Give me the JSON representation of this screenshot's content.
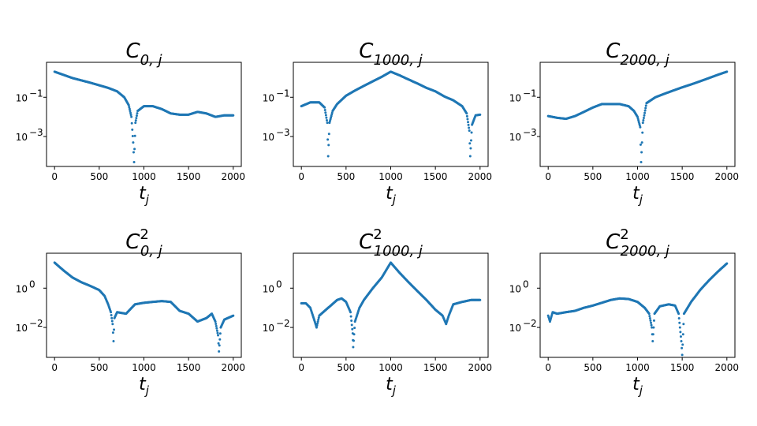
{
  "chart_data": [
    {
      "type": "scatter",
      "title": {
        "base": "C",
        "sub": "0, j",
        "sup": ""
      },
      "xlabel": {
        "base": "t",
        "sub": "j"
      },
      "ylog": true,
      "xlim": [
        -90,
        2090
      ],
      "ylim": [
        3e-05,
        6
      ],
      "xticks": [
        0,
        500,
        1000,
        1500,
        2000
      ],
      "yticks": [
        {
          "value": 0.1,
          "base": "10",
          "exp": "−1"
        },
        {
          "value": 0.001,
          "base": "10",
          "exp": "−3"
        }
      ],
      "series": [
        {
          "color": "#1f77b4",
          "points": [
            [
              0,
              2.0
            ],
            [
              200,
              0.95
            ],
            [
              400,
              0.55
            ],
            [
              600,
              0.3
            ],
            [
              700,
              0.2
            ],
            [
              780,
              0.1
            ],
            [
              830,
              0.04
            ],
            [
              860,
              0.01
            ],
            [
              880,
              0.0005
            ],
            [
              890,
              5e-05
            ],
            [
              905,
              0.005
            ],
            [
              930,
              0.02
            ],
            [
              1000,
              0.035
            ],
            [
              1100,
              0.035
            ],
            [
              1200,
              0.025
            ],
            [
              1300,
              0.015
            ],
            [
              1400,
              0.013
            ],
            [
              1500,
              0.013
            ],
            [
              1600,
              0.018
            ],
            [
              1700,
              0.015
            ],
            [
              1800,
              0.01
            ],
            [
              1900,
              0.012
            ],
            [
              2000,
              0.012
            ]
          ]
        }
      ]
    },
    {
      "type": "scatter",
      "title": {
        "base": "C",
        "sub": "1000, j",
        "sup": ""
      },
      "xlabel": {
        "base": "t",
        "sub": "j"
      },
      "ylog": true,
      "xlim": [
        -90,
        2090
      ],
      "ylim": [
        3e-05,
        6
      ],
      "xticks": [
        0,
        500,
        1000,
        1500,
        2000
      ],
      "yticks": [
        {
          "value": 0.1,
          "base": "10",
          "exp": "−1"
        },
        {
          "value": 0.001,
          "base": "10",
          "exp": "−3"
        }
      ],
      "series": [
        {
          "color": "#1f77b4",
          "points": [
            [
              0,
              0.035
            ],
            [
              100,
              0.055
            ],
            [
              200,
              0.055
            ],
            [
              260,
              0.03
            ],
            [
              290,
              0.005
            ],
            [
              300,
              0.0001
            ],
            [
              315,
              0.005
            ],
            [
              350,
              0.02
            ],
            [
              400,
              0.045
            ],
            [
              500,
              0.12
            ],
            [
              600,
              0.22
            ],
            [
              700,
              0.38
            ],
            [
              800,
              0.65
            ],
            [
              900,
              1.1
            ],
            [
              1000,
              2.0
            ],
            [
              1100,
              1.3
            ],
            [
              1200,
              0.8
            ],
            [
              1300,
              0.5
            ],
            [
              1400,
              0.3
            ],
            [
              1500,
              0.2
            ],
            [
              1600,
              0.11
            ],
            [
              1700,
              0.07
            ],
            [
              1800,
              0.035
            ],
            [
              1850,
              0.015
            ],
            [
              1880,
              0.002
            ],
            [
              1890,
              0.0001
            ],
            [
              1910,
              0.004
            ],
            [
              1950,
              0.012
            ],
            [
              2000,
              0.013
            ]
          ]
        }
      ]
    },
    {
      "type": "scatter",
      "title": {
        "base": "C",
        "sub": "2000, j",
        "sup": ""
      },
      "xlabel": {
        "base": "t",
        "sub": "j"
      },
      "ylog": true,
      "xlim": [
        -90,
        2090
      ],
      "ylim": [
        3e-05,
        6
      ],
      "xticks": [
        0,
        500,
        1000,
        1500,
        2000
      ],
      "yticks": [
        {
          "value": 0.1,
          "base": "10",
          "exp": "−1"
        },
        {
          "value": 0.001,
          "base": "10",
          "exp": "−3"
        }
      ],
      "series": [
        {
          "color": "#1f77b4",
          "points": [
            [
              0,
              0.011
            ],
            [
              100,
              0.009
            ],
            [
              200,
              0.008
            ],
            [
              300,
              0.011
            ],
            [
              400,
              0.018
            ],
            [
              500,
              0.03
            ],
            [
              600,
              0.045
            ],
            [
              700,
              0.045
            ],
            [
              800,
              0.045
            ],
            [
              900,
              0.035
            ],
            [
              960,
              0.02
            ],
            [
              1000,
              0.01
            ],
            [
              1030,
              0.003
            ],
            [
              1040,
              5e-05
            ],
            [
              1060,
              0.005
            ],
            [
              1100,
              0.05
            ],
            [
              1200,
              0.1
            ],
            [
              1300,
              0.15
            ],
            [
              1400,
              0.22
            ],
            [
              1500,
              0.32
            ],
            [
              1600,
              0.45
            ],
            [
              1700,
              0.65
            ],
            [
              1800,
              0.95
            ],
            [
              1900,
              1.4
            ],
            [
              2000,
              2.0
            ]
          ]
        }
      ]
    },
    {
      "type": "scatter",
      "title": {
        "base": "C",
        "sub": "0, j",
        "sup": "2"
      },
      "xlabel": {
        "base": "t",
        "sub": "j"
      },
      "ylog": true,
      "xlim": [
        -90,
        2090
      ],
      "ylim": [
        0.0003,
        60
      ],
      "xticks": [
        0,
        500,
        1000,
        1500,
        2000
      ],
      "yticks": [
        {
          "value": 1,
          "base": "10",
          "exp": "0"
        },
        {
          "value": 0.01,
          "base": "10",
          "exp": "−2"
        }
      ],
      "series": [
        {
          "color": "#1f77b4",
          "points": [
            [
              0,
              20
            ],
            [
              100,
              8
            ],
            [
              200,
              3.5
            ],
            [
              300,
              2.0
            ],
            [
              400,
              1.3
            ],
            [
              500,
              0.8
            ],
            [
              560,
              0.4
            ],
            [
              600,
              0.15
            ],
            [
              630,
              0.06
            ],
            [
              650,
              0.015
            ],
            [
              660,
              0.002
            ],
            [
              670,
              0.03
            ],
            [
              700,
              0.06
            ],
            [
              800,
              0.05
            ],
            [
              900,
              0.15
            ],
            [
              1000,
              0.18
            ],
            [
              1100,
              0.2
            ],
            [
              1200,
              0.22
            ],
            [
              1300,
              0.2
            ],
            [
              1400,
              0.07
            ],
            [
              1500,
              0.05
            ],
            [
              1600,
              0.02
            ],
            [
              1700,
              0.03
            ],
            [
              1760,
              0.05
            ],
            [
              1800,
              0.02
            ],
            [
              1830,
              0.004
            ],
            [
              1840,
              0.0006
            ],
            [
              1860,
              0.01
            ],
            [
              1900,
              0.025
            ],
            [
              2000,
              0.04
            ]
          ]
        }
      ]
    },
    {
      "type": "scatter",
      "title": {
        "base": "C",
        "sub": "1000, j",
        "sup": "2"
      },
      "xlabel": {
        "base": "t",
        "sub": "j"
      },
      "ylog": true,
      "xlim": [
        -90,
        2090
      ],
      "ylim": [
        0.0003,
        60
      ],
      "xticks": [
        0,
        500,
        1000,
        1500,
        2000
      ],
      "yticks": [
        {
          "value": 1,
          "base": "10",
          "exp": "0"
        },
        {
          "value": 0.01,
          "base": "10",
          "exp": "−2"
        }
      ],
      "series": [
        {
          "color": "#1f77b4",
          "points": [
            [
              0,
              0.17
            ],
            [
              50,
              0.17
            ],
            [
              100,
              0.1
            ],
            [
              150,
              0.02
            ],
            [
              170,
              0.01
            ],
            [
              200,
              0.04
            ],
            [
              300,
              0.1
            ],
            [
              400,
              0.25
            ],
            [
              450,
              0.3
            ],
            [
              500,
              0.2
            ],
            [
              550,
              0.06
            ],
            [
              575,
              0.005
            ],
            [
              580,
              0.001
            ],
            [
              600,
              0.02
            ],
            [
              650,
              0.1
            ],
            [
              700,
              0.25
            ],
            [
              800,
              1.0
            ],
            [
              900,
              3.5
            ],
            [
              1000,
              20
            ],
            [
              1100,
              6
            ],
            [
              1200,
              2.0
            ],
            [
              1300,
              0.7
            ],
            [
              1400,
              0.25
            ],
            [
              1500,
              0.08
            ],
            [
              1580,
              0.04
            ],
            [
              1620,
              0.015
            ],
            [
              1650,
              0.04
            ],
            [
              1700,
              0.15
            ],
            [
              1800,
              0.2
            ],
            [
              1900,
              0.25
            ],
            [
              2000,
              0.25
            ]
          ]
        }
      ]
    },
    {
      "type": "scatter",
      "title": {
        "base": "C",
        "sub": "2000, j",
        "sup": "2"
      },
      "xlabel": {
        "base": "t",
        "sub": "j"
      },
      "ylog": true,
      "xlim": [
        -90,
        2090
      ],
      "ylim": [
        0.0003,
        60
      ],
      "xticks": [
        0,
        500,
        1000,
        1500,
        2000
      ],
      "yticks": [
        {
          "value": 1,
          "base": "10",
          "exp": "0"
        },
        {
          "value": 0.01,
          "base": "10",
          "exp": "−2"
        }
      ],
      "series": [
        {
          "color": "#1f77b4",
          "points": [
            [
              0,
              0.04
            ],
            [
              20,
              0.02
            ],
            [
              50,
              0.06
            ],
            [
              100,
              0.05
            ],
            [
              200,
              0.06
            ],
            [
              300,
              0.07
            ],
            [
              400,
              0.1
            ],
            [
              500,
              0.13
            ],
            [
              600,
              0.18
            ],
            [
              700,
              0.25
            ],
            [
              800,
              0.3
            ],
            [
              900,
              0.28
            ],
            [
              1000,
              0.2
            ],
            [
              1080,
              0.1
            ],
            [
              1130,
              0.05
            ],
            [
              1160,
              0.01
            ],
            [
              1170,
              0.002
            ],
            [
              1190,
              0.05
            ],
            [
              1250,
              0.12
            ],
            [
              1350,
              0.15
            ],
            [
              1420,
              0.13
            ],
            [
              1460,
              0.05
            ],
            [
              1490,
              0.002
            ],
            [
              1500,
              0.0004
            ],
            [
              1520,
              0.05
            ],
            [
              1600,
              0.2
            ],
            [
              1700,
              0.8
            ],
            [
              1800,
              2.5
            ],
            [
              1900,
              7
            ],
            [
              2000,
              18
            ]
          ]
        }
      ]
    }
  ]
}
